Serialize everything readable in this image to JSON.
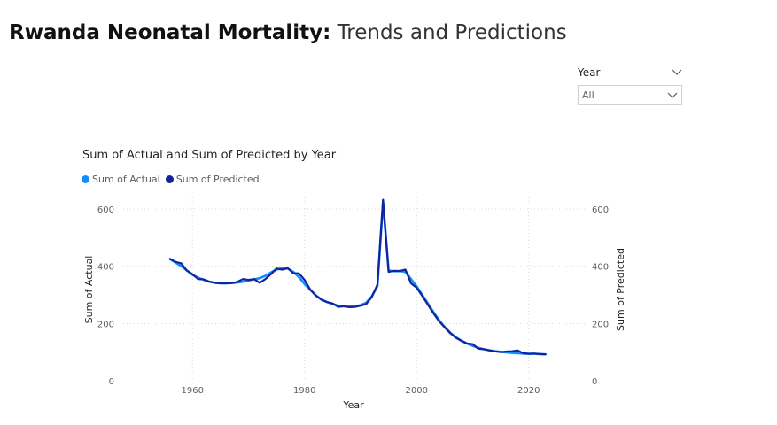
{
  "header": {
    "title_bold": "Rwanda Neonatal Mortality:",
    "title_light": "Trends and Predictions"
  },
  "slicer": {
    "label": "Year",
    "value": "All"
  },
  "colors": {
    "actual": "#118DFF",
    "predicted": "#12239E",
    "grid": "#d9d9d9"
  },
  "chart_data": {
    "type": "line",
    "title": "Sum of Actual and Sum of Predicted by Year",
    "xlabel": "Year",
    "ylabel": "Sum of Actual",
    "y2label": "Sum of Predicted",
    "xlim": [
      1947,
      2030
    ],
    "ylim": [
      0,
      640
    ],
    "x_ticks": [
      1960,
      1980,
      2000,
      2020
    ],
    "y_ticks": [
      0,
      200,
      400,
      600
    ],
    "grid": true,
    "legend_position": "top-left",
    "series": [
      {
        "name": "Sum of Actual",
        "x": [
          1956,
          1957,
          1958,
          1959,
          1960,
          1961,
          1962,
          1963,
          1964,
          1965,
          1966,
          1967,
          1968,
          1969,
          1970,
          1971,
          1972,
          1973,
          1974,
          1975,
          1976,
          1977,
          1978,
          1979,
          1980,
          1981,
          1982,
          1983,
          1984,
          1985,
          1986,
          1987,
          1988,
          1989,
          1990,
          1991,
          1992,
          1993,
          1994,
          1995,
          1996,
          1997,
          1998,
          1999,
          2000,
          2001,
          2002,
          2003,
          2004,
          2005,
          2006,
          2007,
          2008,
          2009,
          2010,
          2011,
          2012,
          2013,
          2014,
          2015,
          2016,
          2017,
          2018,
          2019,
          2020,
          2021,
          2022,
          2023
        ],
        "values": [
          425,
          412,
          400,
          385,
          370,
          360,
          352,
          346,
          342,
          340,
          340,
          341,
          343,
          346,
          350,
          354,
          358,
          366,
          378,
          388,
          393,
          392,
          380,
          362,
          338,
          318,
          298,
          284,
          275,
          268,
          262,
          260,
          259,
          260,
          264,
          272,
          295,
          330,
          625,
          385,
          382,
          383,
          380,
          355,
          330,
          300,
          270,
          240,
          212,
          188,
          168,
          152,
          140,
          130,
          122,
          115,
          110,
          106,
          103,
          101,
          99,
          97,
          96,
          95,
          94,
          94,
          93,
          92
        ]
      },
      {
        "name": "Sum of Predicted",
        "x": [
          1956,
          1957,
          1958,
          1959,
          1960,
          1961,
          1962,
          1963,
          1964,
          1965,
          1966,
          1967,
          1968,
          1969,
          1970,
          1971,
          1972,
          1973,
          1974,
          1975,
          1976,
          1977,
          1978,
          1979,
          1980,
          1981,
          1982,
          1983,
          1984,
          1985,
          1986,
          1987,
          1988,
          1989,
          1990,
          1991,
          1992,
          1993,
          1994,
          1995,
          1996,
          1997,
          1998,
          1999,
          2000,
          2001,
          2002,
          2003,
          2004,
          2005,
          2006,
          2007,
          2008,
          2009,
          2010,
          2011,
          2012,
          2013,
          2014,
          2015,
          2016,
          2017,
          2018,
          2019,
          2020,
          2021,
          2022,
          2023
        ],
        "values": [
          425,
          415,
          410,
          385,
          372,
          355,
          354,
          346,
          342,
          340,
          340,
          341,
          345,
          355,
          352,
          355,
          342,
          355,
          372,
          392,
          388,
          393,
          375,
          375,
          352,
          318,
          298,
          283,
          275,
          270,
          258,
          260,
          257,
          258,
          262,
          268,
          292,
          336,
          632,
          380,
          384,
          383,
          388,
          340,
          325,
          296,
          266,
          236,
          208,
          186,
          166,
          150,
          139,
          130,
          128,
          112,
          110,
          106,
          103,
          100,
          102,
          103,
          106,
          96,
          94,
          95,
          93,
          92
        ]
      }
    ]
  }
}
